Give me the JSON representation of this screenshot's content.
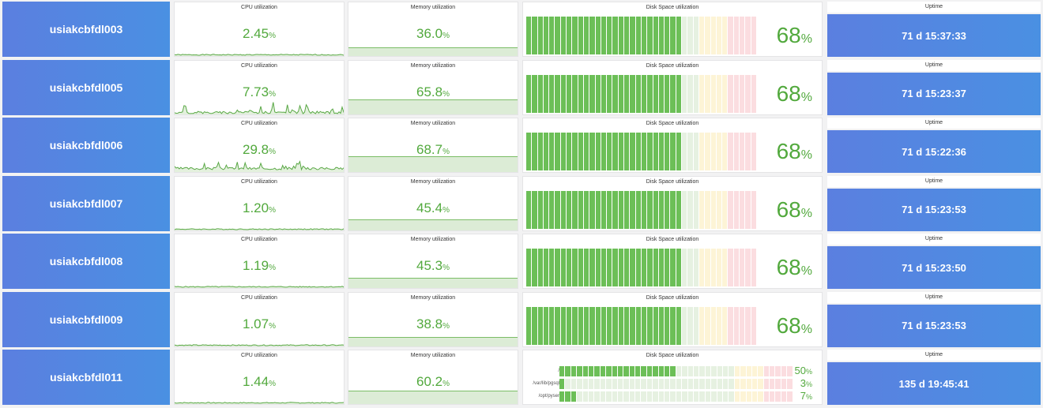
{
  "titles": {
    "cpu": "CPU utilization",
    "memory": "Memory utilization",
    "disk": "Disk Space utilization",
    "uptime": "Uptime"
  },
  "unit": "%",
  "colors": {
    "value_green": "#52a93d",
    "disk_green": "#6cbf57",
    "disk_green_empty": "#e6f1e1",
    "disk_yellow": "#fdf4d6",
    "disk_red": "#fbdde0",
    "host_blue": "#4a90e2"
  },
  "rows": [
    {
      "host": "usiakcbfdl003",
      "cpu": "2.45",
      "memory": "36.0",
      "disk": "68",
      "uptime": "71 d 15:37:33",
      "cpu_activity": "flat"
    },
    {
      "host": "usiakcbfdl005",
      "cpu": "7.73",
      "memory": "65.8",
      "disk": "68",
      "uptime": "71 d 15:23:37",
      "cpu_activity": "spiky"
    },
    {
      "host": "usiakcbfdl006",
      "cpu": "29.8",
      "memory": "68.7",
      "disk": "68",
      "uptime": "71 d 15:22:36",
      "cpu_activity": "busy"
    },
    {
      "host": "usiakcbfdl007",
      "cpu": "1.20",
      "memory": "45.4",
      "disk": "68",
      "uptime": "71 d 15:23:53",
      "cpu_activity": "flat"
    },
    {
      "host": "usiakcbfdl008",
      "cpu": "1.19",
      "memory": "45.3",
      "disk": "68",
      "uptime": "71 d 15:23:50",
      "cpu_activity": "flat"
    },
    {
      "host": "usiakcbfdl009",
      "cpu": "1.07",
      "memory": "38.8",
      "disk": "68",
      "uptime": "71 d 15:23:53",
      "cpu_activity": "flat"
    },
    {
      "host": "usiakcbfdl011",
      "cpu": "1.44",
      "memory": "60.2",
      "uptime": "135 d 19:45:41",
      "cpu_activity": "flat",
      "disk_mounts": [
        {
          "label": "/",
          "value": "50"
        },
        {
          "label": "/var/lib/pgsql",
          "value": "3"
        },
        {
          "label": "/opt/pyser",
          "value": "7"
        }
      ]
    }
  ]
}
